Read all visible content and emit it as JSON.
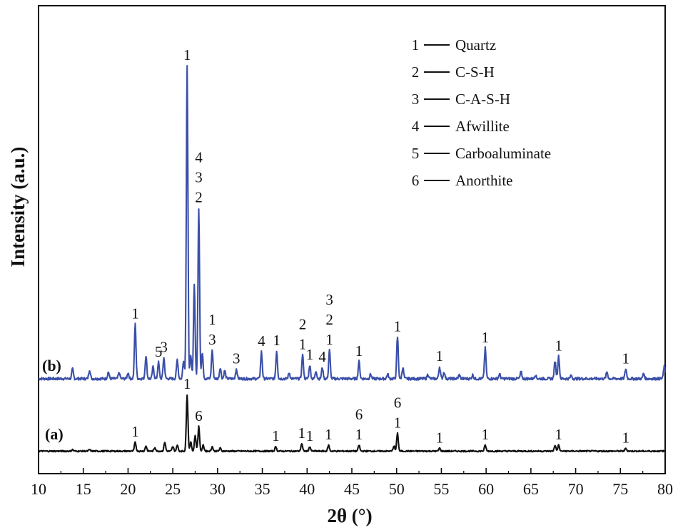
{
  "chart_data": {
    "type": "line",
    "xlabel": "2θ (°)",
    "ylabel": "Intensity (a.u.)",
    "xlim": [
      10,
      80
    ],
    "xticks": [
      10,
      15,
      20,
      25,
      30,
      35,
      40,
      45,
      50,
      55,
      60,
      65,
      70,
      75,
      80
    ],
    "legend": {
      "position": "top-right",
      "entries": [
        {
          "key": "1",
          "label": "Quartz"
        },
        {
          "key": "2",
          "label": "C-S-H"
        },
        {
          "key": "3",
          "label": "C-A-S-H"
        },
        {
          "key": "4",
          "label": "Afwillite"
        },
        {
          "key": "5",
          "label": "Carboaluminate"
        },
        {
          "key": "6",
          "label": "Anorthite"
        }
      ]
    },
    "series": [
      {
        "name": "(b)",
        "color": "#3a4fa8",
        "baseline": 2,
        "peaks": [
          {
            "x": 13.8,
            "h": 1.3
          },
          {
            "x": 15.7,
            "h": 1.2
          },
          {
            "x": 17.8,
            "h": 0.9
          },
          {
            "x": 19.0,
            "h": 0.8
          },
          {
            "x": 20.0,
            "h": 0.8
          },
          {
            "x": 20.8,
            "h": 7.3
          },
          {
            "x": 22.0,
            "h": 3.1
          },
          {
            "x": 22.8,
            "h": 1.6
          },
          {
            "x": 23.4,
            "h": 2.2
          },
          {
            "x": 24.0,
            "h": 2.8
          },
          {
            "x": 25.5,
            "h": 2.6
          },
          {
            "x": 26.2,
            "h": 2.5
          },
          {
            "x": 26.6,
            "h": 42.0
          },
          {
            "x": 27.0,
            "h": 3.0
          },
          {
            "x": 27.4,
            "h": 12.6
          },
          {
            "x": 27.9,
            "h": 22.9
          },
          {
            "x": 28.3,
            "h": 3.5
          },
          {
            "x": 29.4,
            "h": 3.8
          },
          {
            "x": 30.3,
            "h": 1.5
          },
          {
            "x": 30.8,
            "h": 1.1
          },
          {
            "x": 32.1,
            "h": 1.3
          },
          {
            "x": 34.9,
            "h": 3.6
          },
          {
            "x": 36.6,
            "h": 3.7
          },
          {
            "x": 38.0,
            "h": 0.8
          },
          {
            "x": 39.5,
            "h": 3.2
          },
          {
            "x": 40.3,
            "h": 1.8
          },
          {
            "x": 41.0,
            "h": 1.0
          },
          {
            "x": 41.7,
            "h": 1.5
          },
          {
            "x": 42.5,
            "h": 3.8
          },
          {
            "x": 45.8,
            "h": 2.3
          },
          {
            "x": 47.1,
            "h": 0.6
          },
          {
            "x": 49.0,
            "h": 0.6
          },
          {
            "x": 50.1,
            "h": 5.6
          },
          {
            "x": 50.7,
            "h": 1.5
          },
          {
            "x": 53.5,
            "h": 0.6
          },
          {
            "x": 54.8,
            "h": 1.6
          },
          {
            "x": 55.3,
            "h": 0.9
          },
          {
            "x": 57.0,
            "h": 0.5
          },
          {
            "x": 58.5,
            "h": 0.5
          },
          {
            "x": 59.9,
            "h": 4.1
          },
          {
            "x": 61.5,
            "h": 0.6
          },
          {
            "x": 63.9,
            "h": 0.9
          },
          {
            "x": 65.5,
            "h": 0.5
          },
          {
            "x": 67.7,
            "h": 2.4
          },
          {
            "x": 68.1,
            "h": 3.0
          },
          {
            "x": 69.5,
            "h": 0.4
          },
          {
            "x": 73.5,
            "h": 0.9
          },
          {
            "x": 75.6,
            "h": 1.3
          },
          {
            "x": 77.6,
            "h": 0.7
          },
          {
            "x": 79.9,
            "h": 1.6
          }
        ],
        "annotations": [
          {
            "x": 20.8,
            "text": "1"
          },
          {
            "x": 23.4,
            "text": "5"
          },
          {
            "x": 24.0,
            "text": "3"
          },
          {
            "x": 26.6,
            "text": "1"
          },
          {
            "x": 27.9,
            "text": "2"
          },
          {
            "x": 27.9,
            "text": "3"
          },
          {
            "x": 27.9,
            "text": "4"
          },
          {
            "x": 29.4,
            "text": "3"
          },
          {
            "x": 29.4,
            "text": "1"
          },
          {
            "x": 32.1,
            "text": "3"
          },
          {
            "x": 34.9,
            "text": "4"
          },
          {
            "x": 36.6,
            "text": "1"
          },
          {
            "x": 39.5,
            "text": "1"
          },
          {
            "x": 39.5,
            "text": "2"
          },
          {
            "x": 40.3,
            "text": "1"
          },
          {
            "x": 41.7,
            "text": "4"
          },
          {
            "x": 42.5,
            "text": "1"
          },
          {
            "x": 42.5,
            "text": "2"
          },
          {
            "x": 42.5,
            "text": "3"
          },
          {
            "x": 45.8,
            "text": "1"
          },
          {
            "x": 50.1,
            "text": "1"
          },
          {
            "x": 54.8,
            "text": "1"
          },
          {
            "x": 59.9,
            "text": "1"
          },
          {
            "x": 68.1,
            "text": "1"
          },
          {
            "x": 75.6,
            "text": "1"
          }
        ]
      },
      {
        "name": "(a)",
        "color": "#111111",
        "baseline": 1,
        "peaks": [
          {
            "x": 13.8,
            "h": 0.2
          },
          {
            "x": 15.7,
            "h": 0.2
          },
          {
            "x": 20.8,
            "h": 1.2
          },
          {
            "x": 22.0,
            "h": 0.7
          },
          {
            "x": 23.0,
            "h": 0.5
          },
          {
            "x": 24.1,
            "h": 1.2
          },
          {
            "x": 25.0,
            "h": 0.6
          },
          {
            "x": 25.5,
            "h": 0.8
          },
          {
            "x": 26.6,
            "h": 7.6
          },
          {
            "x": 27.0,
            "h": 1.2
          },
          {
            "x": 27.5,
            "h": 2.1
          },
          {
            "x": 27.9,
            "h": 3.3
          },
          {
            "x": 28.4,
            "h": 0.8
          },
          {
            "x": 29.4,
            "h": 0.6
          },
          {
            "x": 30.3,
            "h": 0.4
          },
          {
            "x": 36.5,
            "h": 0.6
          },
          {
            "x": 39.4,
            "h": 1.0
          },
          {
            "x": 40.3,
            "h": 0.6
          },
          {
            "x": 42.4,
            "h": 0.8
          },
          {
            "x": 45.8,
            "h": 0.8
          },
          {
            "x": 49.7,
            "h": 0.7
          },
          {
            "x": 50.1,
            "h": 2.4
          },
          {
            "x": 54.8,
            "h": 0.4
          },
          {
            "x": 59.9,
            "h": 0.8
          },
          {
            "x": 67.7,
            "h": 0.8
          },
          {
            "x": 68.1,
            "h": 0.8
          },
          {
            "x": 75.6,
            "h": 0.4
          }
        ],
        "annotations": [
          {
            "x": 20.8,
            "text": "1"
          },
          {
            "x": 26.6,
            "text": "1"
          },
          {
            "x": 27.9,
            "text": "6"
          },
          {
            "x": 36.5,
            "text": "1"
          },
          {
            "x": 39.4,
            "text": "1"
          },
          {
            "x": 40.3,
            "text": "1"
          },
          {
            "x": 42.4,
            "text": "1"
          },
          {
            "x": 45.8,
            "text": "1"
          },
          {
            "x": 45.8,
            "text": "6"
          },
          {
            "x": 50.1,
            "text": "1"
          },
          {
            "x": 50.1,
            "text": "6"
          },
          {
            "x": 54.8,
            "text": "1"
          },
          {
            "x": 59.9,
            "text": "1"
          },
          {
            "x": 68.1,
            "text": "1"
          },
          {
            "x": 75.6,
            "text": "1"
          }
        ]
      }
    ]
  }
}
